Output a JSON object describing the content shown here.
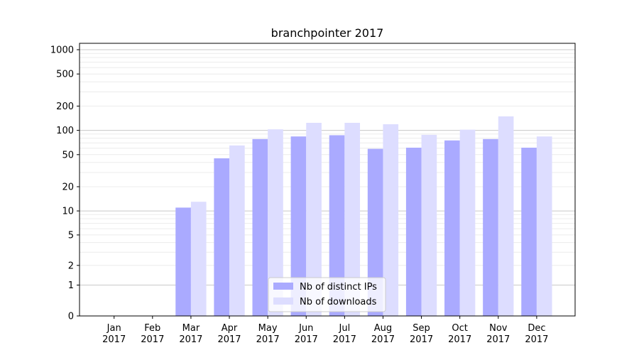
{
  "chart_data": {
    "type": "bar",
    "title": "branchpointer 2017",
    "xlabel": "",
    "ylabel": "",
    "yscale": "symlog",
    "ylim": [
      0,
      1200
    ],
    "yticks": [
      0,
      1,
      2,
      5,
      10,
      20,
      50,
      100,
      200,
      500,
      1000
    ],
    "ytick_labels": [
      "0",
      "1",
      "2",
      "5",
      "10",
      "20",
      "50",
      "100",
      "200",
      "500",
      "1000"
    ],
    "grid": true,
    "legend_position": "lower center",
    "categories": [
      [
        "Jan",
        "2017"
      ],
      [
        "Feb",
        "2017"
      ],
      [
        "Mar",
        "2017"
      ],
      [
        "Apr",
        "2017"
      ],
      [
        "May",
        "2017"
      ],
      [
        "Jun",
        "2017"
      ],
      [
        "Jul",
        "2017"
      ],
      [
        "Aug",
        "2017"
      ],
      [
        "Sep",
        "2017"
      ],
      [
        "Oct",
        "2017"
      ],
      [
        "Nov",
        "2017"
      ],
      [
        "Dec",
        "2017"
      ]
    ],
    "series": [
      {
        "name": "Nb of distinct IPs",
        "color": "#aaaaff",
        "values": [
          0,
          0,
          11,
          45,
          78,
          84,
          87,
          59,
          61,
          75,
          78,
          61
        ]
      },
      {
        "name": "Nb of downloads",
        "color": "#ddddff",
        "values": [
          0,
          0,
          13,
          65,
          103,
          124,
          124,
          119,
          88,
          102,
          149,
          84
        ]
      }
    ]
  }
}
